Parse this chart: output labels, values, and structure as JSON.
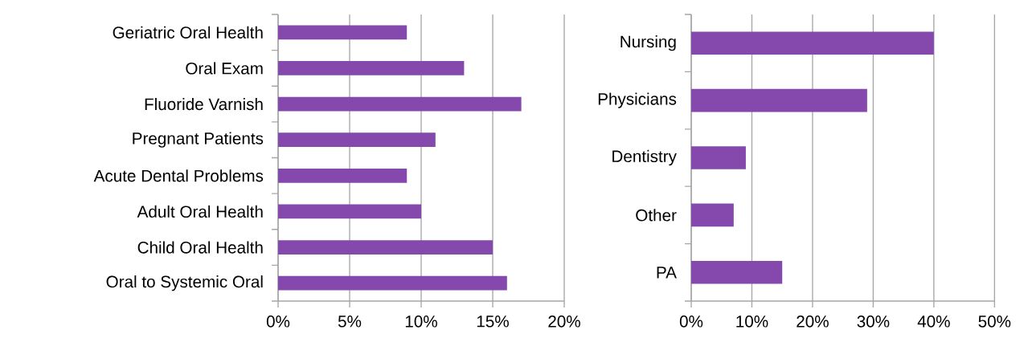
{
  "chart_data": [
    {
      "type": "bar",
      "orientation": "horizontal",
      "categories": [
        "Geriatric Oral Health",
        "Oral Exam",
        "Fluoride Varnish",
        "Pregnant Patients",
        "Acute Dental Problems",
        "Adult Oral Health",
        "Child Oral Health",
        "Oral to Systemic Oral"
      ],
      "values": [
        9,
        13,
        17,
        11,
        9,
        10,
        15,
        16
      ],
      "color": "#8549ad",
      "xlim": [
        0,
        20
      ],
      "xticks": [
        {
          "value": 0,
          "label": "0%"
        },
        {
          "value": 5,
          "label": "5%"
        },
        {
          "value": 10,
          "label": "10%"
        },
        {
          "value": 15,
          "label": "15%"
        },
        {
          "value": 20,
          "label": "20%"
        }
      ],
      "grid": "x"
    },
    {
      "type": "bar",
      "orientation": "horizontal",
      "categories": [
        "Nursing",
        "Physicians",
        "Dentistry",
        "Other",
        "PA"
      ],
      "values": [
        40,
        29,
        9,
        7,
        15
      ],
      "color": "#8549ad",
      "xlim": [
        0,
        50
      ],
      "xticks": [
        {
          "value": 0,
          "label": "0%"
        },
        {
          "value": 10,
          "label": "10%"
        },
        {
          "value": 20,
          "label": "20%"
        },
        {
          "value": 30,
          "label": "30%"
        },
        {
          "value": 40,
          "label": "40%"
        },
        {
          "value": 50,
          "label": "50%"
        }
      ],
      "grid": "x"
    }
  ]
}
